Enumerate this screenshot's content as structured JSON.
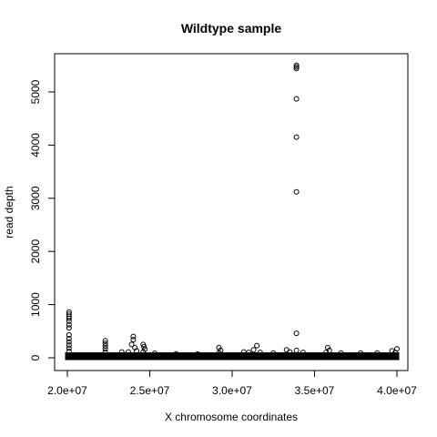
{
  "chart_data": {
    "type": "scatter",
    "title": "Wildtype sample",
    "xlabel": "X chromosome coordinates",
    "ylabel": "read depth",
    "xlim": [
      20000000,
      40000000
    ],
    "ylim": [
      0,
      5500
    ],
    "x_ticks": [
      20000000,
      25000000,
      30000000,
      35000000,
      40000000
    ],
    "x_tick_labels": [
      "2.0e+07",
      "2.5e+07",
      "3.0e+07",
      "3.5e+07",
      "4.0e+07"
    ],
    "y_ticks": [
      0,
      1000,
      2000,
      3000,
      4000,
      5000
    ],
    "y_tick_labels": [
      "0",
      "1000",
      "2000",
      "3000",
      "4000",
      "5000"
    ],
    "grid": false,
    "marker": "open-circle",
    "baseline_band": {
      "x_range": [
        20000000,
        40000000
      ],
      "y_range": [
        0,
        60
      ]
    },
    "points": [
      {
        "x": 33900000,
        "y": 5500
      },
      {
        "x": 33900000,
        "y": 5470
      },
      {
        "x": 33900000,
        "y": 5440
      },
      {
        "x": 33900000,
        "y": 4870
      },
      {
        "x": 33900000,
        "y": 4150
      },
      {
        "x": 33900000,
        "y": 3120
      },
      {
        "x": 33900000,
        "y": 460
      },
      {
        "x": 33900000,
        "y": 140
      },
      {
        "x": 20100000,
        "y": 860
      },
      {
        "x": 20100000,
        "y": 820
      },
      {
        "x": 20100000,
        "y": 780
      },
      {
        "x": 20100000,
        "y": 740
      },
      {
        "x": 20100000,
        "y": 690
      },
      {
        "x": 20100000,
        "y": 620
      },
      {
        "x": 20100000,
        "y": 560
      },
      {
        "x": 20100000,
        "y": 430
      },
      {
        "x": 20100000,
        "y": 360
      },
      {
        "x": 20100000,
        "y": 300
      },
      {
        "x": 20100000,
        "y": 240
      },
      {
        "x": 20100000,
        "y": 180
      },
      {
        "x": 20100000,
        "y": 120
      },
      {
        "x": 22300000,
        "y": 320
      },
      {
        "x": 22300000,
        "y": 270
      },
      {
        "x": 22300000,
        "y": 220
      },
      {
        "x": 22300000,
        "y": 170
      },
      {
        "x": 22300000,
        "y": 110
      },
      {
        "x": 23300000,
        "y": 110
      },
      {
        "x": 23700000,
        "y": 110
      },
      {
        "x": 24000000,
        "y": 400
      },
      {
        "x": 24000000,
        "y": 340
      },
      {
        "x": 23900000,
        "y": 250
      },
      {
        "x": 24100000,
        "y": 190
      },
      {
        "x": 24200000,
        "y": 130
      },
      {
        "x": 24600000,
        "y": 250
      },
      {
        "x": 24650000,
        "y": 210
      },
      {
        "x": 24700000,
        "y": 160
      },
      {
        "x": 24600000,
        "y": 110
      },
      {
        "x": 25300000,
        "y": 85
      },
      {
        "x": 26600000,
        "y": 75
      },
      {
        "x": 27900000,
        "y": 70
      },
      {
        "x": 29200000,
        "y": 190
      },
      {
        "x": 29300000,
        "y": 140
      },
      {
        "x": 29200000,
        "y": 95
      },
      {
        "x": 30700000,
        "y": 110
      },
      {
        "x": 31000000,
        "y": 100
      },
      {
        "x": 31500000,
        "y": 230
      },
      {
        "x": 31300000,
        "y": 150
      },
      {
        "x": 31700000,
        "y": 100
      },
      {
        "x": 32500000,
        "y": 90
      },
      {
        "x": 33300000,
        "y": 150
      },
      {
        "x": 33500000,
        "y": 110
      },
      {
        "x": 34300000,
        "y": 100
      },
      {
        "x": 35800000,
        "y": 190
      },
      {
        "x": 35900000,
        "y": 140
      },
      {
        "x": 35700000,
        "y": 100
      },
      {
        "x": 36600000,
        "y": 90
      },
      {
        "x": 37800000,
        "y": 90
      },
      {
        "x": 38800000,
        "y": 90
      },
      {
        "x": 39700000,
        "y": 130
      },
      {
        "x": 40000000,
        "y": 170
      },
      {
        "x": 39900000,
        "y": 100
      }
    ]
  }
}
